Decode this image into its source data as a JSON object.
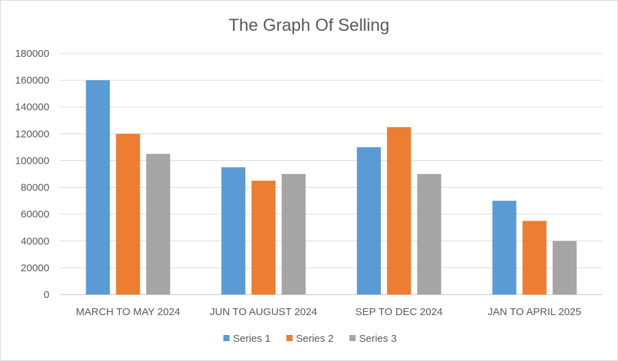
{
  "chart_data": {
    "type": "bar",
    "title": "The Graph Of Selling",
    "categories": [
      "MARCH TO MAY 2024",
      "JUN TO AUGUST 2024",
      "SEP TO DEC 2024",
      "JAN TO APRIL 2025"
    ],
    "series": [
      {
        "name": "Series 1",
        "color": "#5B9BD5",
        "values": [
          160000,
          95000,
          110000,
          70000
        ]
      },
      {
        "name": "Series 2",
        "color": "#ED7D31",
        "values": [
          120000,
          85000,
          125000,
          55000
        ]
      },
      {
        "name": "Series 3",
        "color": "#A5A5A5",
        "values": [
          105000,
          90000,
          90000,
          40000
        ]
      }
    ],
    "y_ticks": [
      "0",
      "20000",
      "40000",
      "60000",
      "80000",
      "100000",
      "120000",
      "140000",
      "160000",
      "180000"
    ],
    "ylim": [
      0,
      180000
    ],
    "xlabel": "",
    "ylabel": "",
    "grid": true,
    "legend_position": "bottom"
  }
}
